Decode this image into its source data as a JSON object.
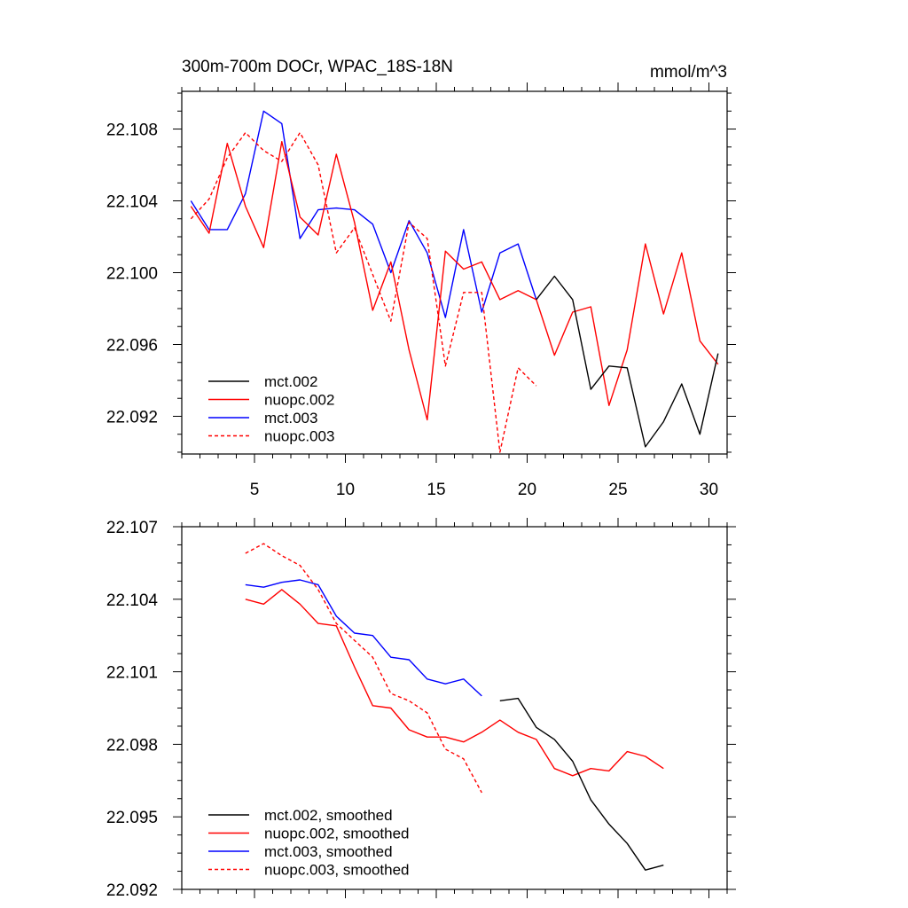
{
  "chart_data": [
    {
      "type": "line",
      "title": "300m-700m DOCr, WPAC_18S-18N",
      "units": "mmol/m^3",
      "xlabel": "",
      "ylabel": "",
      "xlim": [
        1,
        31
      ],
      "ylim": [
        22.0899,
        22.1101
      ],
      "xticks": [
        5,
        10,
        15,
        20,
        25,
        30
      ],
      "yticks": [
        22.092,
        22.096,
        22.1,
        22.104,
        22.108
      ],
      "ytick_labels": [
        "22.092",
        "22.096",
        "22.100",
        "22.104",
        "22.108"
      ],
      "legend_position": "bottom-left",
      "series": [
        {
          "name": "mct.002",
          "color": "#000000",
          "dash": "solid",
          "x": [
            20.5,
            21.5,
            22.5,
            23.5,
            24.5,
            25.5,
            26.5,
            27.5,
            28.5,
            29.5,
            30.5
          ],
          "values": [
            22.0985,
            22.0998,
            22.0985,
            22.0935,
            22.0948,
            22.0947,
            22.0903,
            22.0917,
            22.0938,
            22.091,
            22.0955
          ]
        },
        {
          "name": "nuopc.002",
          "color": "#ff0000",
          "dash": "solid",
          "x": [
            1.5,
            2.5,
            3.5,
            4.5,
            5.5,
            6.5,
            7.5,
            8.5,
            9.5,
            10.5,
            11.5,
            12.5,
            13.5,
            14.5,
            15.5,
            16.5,
            17.5,
            18.5,
            19.5,
            20.5,
            21.5,
            22.5,
            23.5,
            24.5,
            25.5,
            26.5,
            27.5,
            28.5,
            29.5,
            30.5
          ],
          "values": [
            22.1037,
            22.1022,
            22.1072,
            22.1037,
            22.1014,
            22.1073,
            22.1031,
            22.1021,
            22.1066,
            22.1028,
            22.0979,
            22.1006,
            22.0957,
            22.0918,
            22.1012,
            22.1002,
            22.1006,
            22.0985,
            22.099,
            22.0985,
            22.0954,
            22.0978,
            22.0981,
            22.0926,
            22.0957,
            22.1016,
            22.0977,
            22.1011,
            22.0962,
            22.0949
          ]
        },
        {
          "name": "mct.003",
          "color": "#0000ff",
          "dash": "solid",
          "x": [
            1.5,
            2.5,
            3.5,
            4.5,
            5.5,
            6.5,
            7.5,
            8.5,
            9.5,
            10.5,
            11.5,
            12.5,
            13.5,
            14.5,
            15.5,
            16.5,
            17.5,
            18.5,
            19.5,
            20.5
          ],
          "values": [
            22.104,
            22.1024,
            22.1024,
            22.1044,
            22.109,
            22.1083,
            22.1019,
            22.1035,
            22.1036,
            22.1035,
            22.1027,
            22.1,
            22.1029,
            22.1011,
            22.0975,
            22.1024,
            22.0978,
            22.1011,
            22.1016,
            22.0985
          ]
        },
        {
          "name": "nuopc.003",
          "color": "#ff0000",
          "dash": "dashed",
          "x": [
            1.5,
            2.5,
            3.5,
            4.5,
            5.5,
            6.5,
            7.5,
            8.5,
            9.5,
            10.5,
            11.5,
            12.5,
            13.5,
            14.5,
            15.5,
            16.5,
            17.5,
            18.5,
            19.5,
            20.5
          ],
          "values": [
            22.103,
            22.1041,
            22.1064,
            22.1078,
            22.1068,
            22.1062,
            22.1078,
            22.106,
            22.1011,
            22.1025,
            22.0999,
            22.0973,
            22.1028,
            22.1019,
            22.0948,
            22.0989,
            22.0989,
            22.09,
            22.0947,
            22.0937
          ]
        }
      ]
    },
    {
      "type": "line",
      "title": "",
      "units": "",
      "xlabel": "",
      "ylabel": "",
      "xlim": [
        1,
        31
      ],
      "ylim": [
        22.092,
        22.107
      ],
      "xticks": [
        5,
        10,
        15,
        20,
        25,
        30
      ],
      "xtick_labels": [],
      "yticks": [
        22.092,
        22.095,
        22.098,
        22.101,
        22.104,
        22.107
      ],
      "ytick_labels": [
        "22.092",
        "22.095",
        "22.098",
        "22.101",
        "22.104",
        "22.107"
      ],
      "legend_position": "bottom-left",
      "series": [
        {
          "name": "mct.002, smoothed",
          "color": "#000000",
          "dash": "solid",
          "x": [
            18.5,
            19.5,
            20.5,
            21.5,
            22.5,
            23.5,
            24.5,
            25.5,
            26.5,
            27.5
          ],
          "values": [
            22.0998,
            22.0999,
            22.0987,
            22.0982,
            22.0973,
            22.0957,
            22.0947,
            22.0939,
            22.0928,
            22.093
          ]
        },
        {
          "name": "nuopc.002, smoothed",
          "color": "#ff0000",
          "dash": "solid",
          "x": [
            4.5,
            5.5,
            6.5,
            7.5,
            8.5,
            9.5,
            10.5,
            11.5,
            12.5,
            13.5,
            14.5,
            15.5,
            16.5,
            17.5,
            18.5,
            19.5,
            20.5,
            21.5,
            22.5,
            23.5,
            24.5,
            25.5,
            26.5,
            27.5
          ],
          "values": [
            22.104,
            22.1038,
            22.1044,
            22.1038,
            22.103,
            22.1029,
            22.1012,
            22.0996,
            22.0995,
            22.0986,
            22.0983,
            22.0983,
            22.0981,
            22.0985,
            22.099,
            22.0985,
            22.0982,
            22.097,
            22.0967,
            22.097,
            22.0969,
            22.0977,
            22.0975,
            22.097
          ]
        },
        {
          "name": "mct.003, smoothed",
          "color": "#0000ff",
          "dash": "solid",
          "x": [
            4.5,
            5.5,
            6.5,
            7.5,
            8.5,
            9.5,
            10.5,
            11.5,
            12.5,
            13.5,
            14.5,
            15.5,
            16.5,
            17.5
          ],
          "values": [
            22.1046,
            22.1045,
            22.1047,
            22.1048,
            22.1046,
            22.1033,
            22.1026,
            22.1025,
            22.1016,
            22.1015,
            22.1007,
            22.1005,
            22.1007,
            22.1
          ],
          "note": "hidden under black where overlapping"
        },
        {
          "name": "nuopc.003, smoothed",
          "color": "#ff0000",
          "dash": "dashed",
          "x": [
            4.5,
            5.5,
            6.5,
            7.5,
            8.5,
            9.5,
            10.5,
            11.5,
            12.5,
            13.5,
            14.5,
            15.5,
            16.5,
            17.5
          ],
          "values": [
            22.1059,
            22.1063,
            22.1058,
            22.1054,
            22.1044,
            22.103,
            22.1023,
            22.1016,
            22.1001,
            22.0998,
            22.0993,
            22.0978,
            22.0974,
            22.096
          ]
        }
      ]
    }
  ]
}
